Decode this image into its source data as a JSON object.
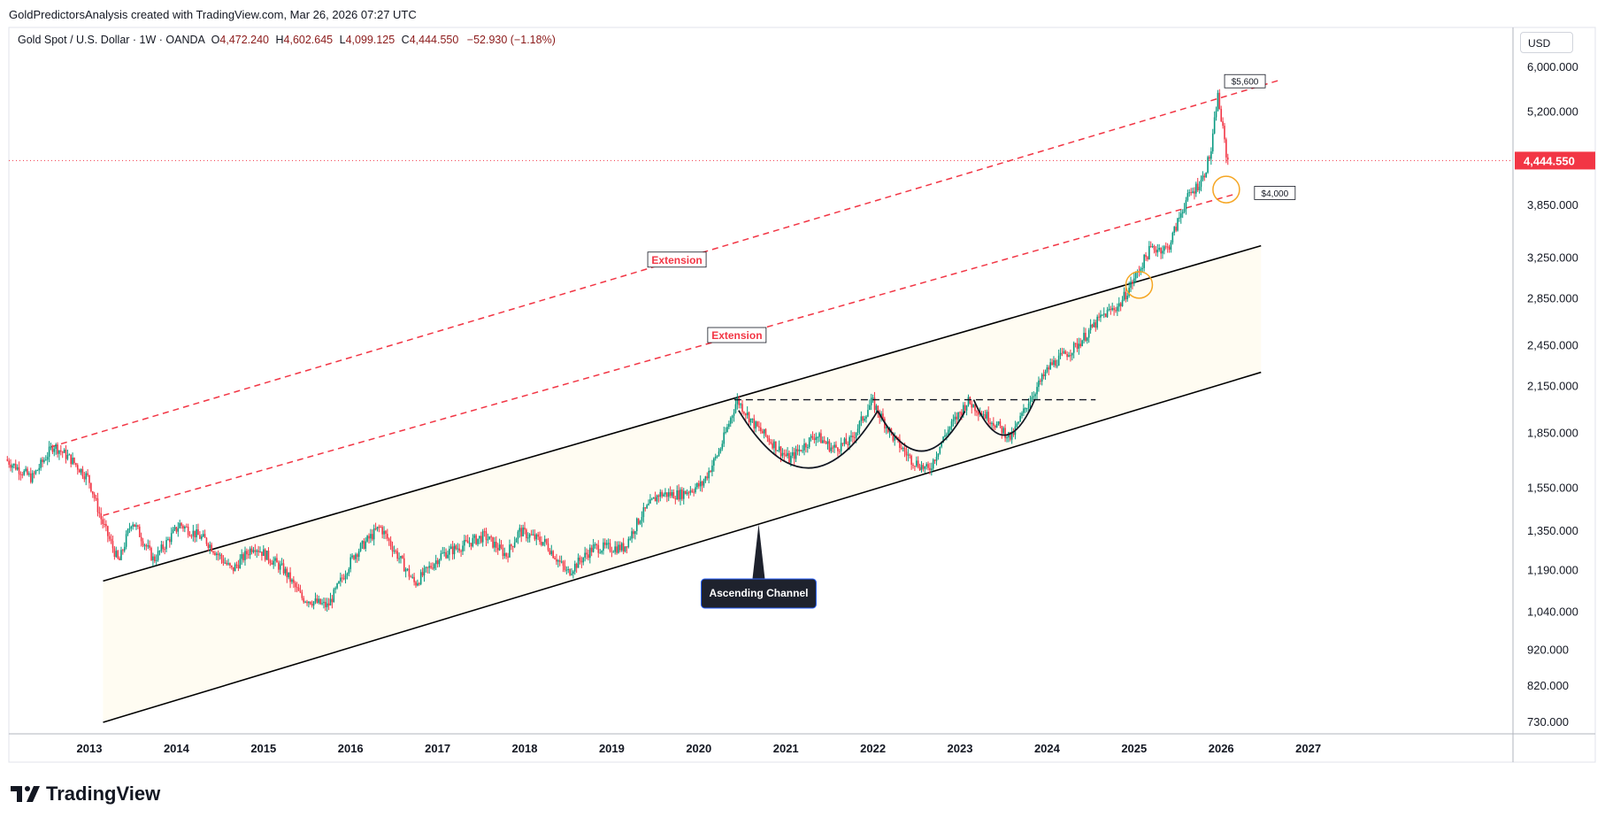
{
  "header": {
    "credit": "GoldPredictorsAnalysis created with TradingView.com, Mar 26, 2026 07:27 UTC"
  },
  "legend": {
    "symbol": "Gold Spot / U.S. Dollar · 1W · OANDA",
    "open_label": "O",
    "open": "4,472.240",
    "high_label": "H",
    "high": "4,602.645",
    "low_label": "L",
    "low": "4,099.125",
    "close_label": "C",
    "close": "4,444.550",
    "change": "−52.930 (−1.18%)"
  },
  "currency_button": "USD",
  "brand": {
    "name": "TradingView",
    "logo_icon": "tradingview-logo-icon"
  },
  "colors": {
    "up": "#089981",
    "down": "#f23645",
    "channel": "#000000",
    "extension": "#f23645",
    "channel_fill": "#fffcf2",
    "price_tag": "#f23645",
    "circle": "#f5a623"
  },
  "chart_data": {
    "type": "candlestick",
    "title": "Gold Spot / U.S. Dollar · 1W · OANDA",
    "y_scale": "log",
    "y_ticks": [
      "6,000.000",
      "5,200.000",
      "4,444.550",
      "3,850.000",
      "3,250.000",
      "2,850.000",
      "2,450.000",
      "2,150.000",
      "1,850.000",
      "1,550.000",
      "1,350.000",
      "1,190.000",
      "1,040.000",
      "920.000",
      "820.000",
      "730.000"
    ],
    "y_tick_values": [
      6000,
      5200,
      3850,
      3250,
      2850,
      2450,
      2150,
      1850,
      1550,
      1350,
      1190,
      1040,
      920,
      820,
      730
    ],
    "x_ticks": [
      "2013",
      "2014",
      "2015",
      "2016",
      "2017",
      "2018",
      "2019",
      "2020",
      "2021",
      "2022",
      "2023",
      "2024",
      "2025",
      "2026",
      "2027"
    ],
    "x_range": [
      2012.2,
      2027.0
    ],
    "y_range": [
      680,
      7000
    ],
    "current_price": {
      "label": "4,444.550",
      "value": 4444.55
    },
    "price_path": [
      [
        2012.2,
        1700
      ],
      [
        2012.5,
        1600
      ],
      [
        2012.75,
        1780
      ],
      [
        2012.95,
        1700
      ],
      [
        2013.15,
        1600
      ],
      [
        2013.3,
        1400
      ],
      [
        2013.5,
        1220
      ],
      [
        2013.65,
        1400
      ],
      [
        2013.9,
        1230
      ],
      [
        2014.2,
        1380
      ],
      [
        2014.5,
        1310
      ],
      [
        2014.8,
        1190
      ],
      [
        2015.05,
        1290
      ],
      [
        2015.4,
        1190
      ],
      [
        2015.6,
        1090
      ],
      [
        2015.9,
        1060
      ],
      [
        2016.2,
        1250
      ],
      [
        2016.5,
        1370
      ],
      [
        2016.9,
        1140
      ],
      [
        2017.2,
        1250
      ],
      [
        2017.7,
        1330
      ],
      [
        2017.95,
        1250
      ],
      [
        2018.1,
        1350
      ],
      [
        2018.4,
        1300
      ],
      [
        2018.65,
        1180
      ],
      [
        2018.95,
        1280
      ],
      [
        2019.3,
        1280
      ],
      [
        2019.5,
        1420
      ],
      [
        2019.7,
        1520
      ],
      [
        2019.95,
        1520
      ],
      [
        2020.2,
        1570
      ],
      [
        2020.4,
        1750
      ],
      [
        2020.6,
        2060
      ],
      [
        2020.8,
        1900
      ],
      [
        2021.2,
        1700
      ],
      [
        2021.5,
        1840
      ],
      [
        2021.7,
        1760
      ],
      [
        2021.9,
        1800
      ],
      [
        2022.15,
        2050
      ],
      [
        2022.4,
        1820
      ],
      [
        2022.6,
        1700
      ],
      [
        2022.8,
        1640
      ],
      [
        2023.0,
        1850
      ],
      [
        2023.25,
        2050
      ],
      [
        2023.5,
        1940
      ],
      [
        2023.75,
        1820
      ],
      [
        2023.95,
        2050
      ],
      [
        2024.2,
        2300
      ],
      [
        2024.5,
        2450
      ],
      [
        2024.8,
        2700
      ],
      [
        2025.0,
        2800
      ],
      [
        2025.2,
        3100
      ],
      [
        2025.35,
        3350
      ],
      [
        2025.55,
        3350
      ],
      [
        2025.75,
        3900
      ],
      [
        2025.95,
        4200
      ],
      [
        2026.05,
        4600
      ],
      [
        2026.12,
        5500
      ],
      [
        2026.18,
        4900
      ],
      [
        2026.23,
        4445
      ]
    ],
    "channel": {
      "upper": [
        [
          2013.3,
          1150
        ],
        [
          2026.6,
          3380
        ]
      ],
      "lower": [
        [
          2013.3,
          730
        ],
        [
          2026.6,
          2250
        ]
      ]
    },
    "extensions": [
      {
        "label": "Extension",
        "points": [
          [
            2012.7,
            1770
          ],
          [
            2026.8,
            5750
          ]
        ]
      },
      {
        "label": "Extension",
        "points": [
          [
            2013.3,
            1420
          ],
          [
            2026.3,
            3990
          ]
        ]
      }
    ],
    "resistance_line": {
      "value": 2060,
      "x": [
        2020.55,
        2024.7
      ]
    },
    "cup_arcs": [
      [
        2020.6,
        2022.2
      ],
      [
        2022.2,
        2023.2
      ],
      [
        2023.3,
        2024.0
      ]
    ],
    "markers": [
      {
        "label": "$5,600",
        "value": 5600,
        "x": 2026.1
      },
      {
        "label": "$4,000",
        "value": 4000,
        "x": 2026.22
      }
    ],
    "circles": [
      {
        "x": 2025.2,
        "value": 2980
      },
      {
        "x": 2026.2,
        "value": 4050
      }
    ],
    "annotation": {
      "label": "Ascending Channel",
      "x": 2020.83,
      "value": 1140
    }
  }
}
